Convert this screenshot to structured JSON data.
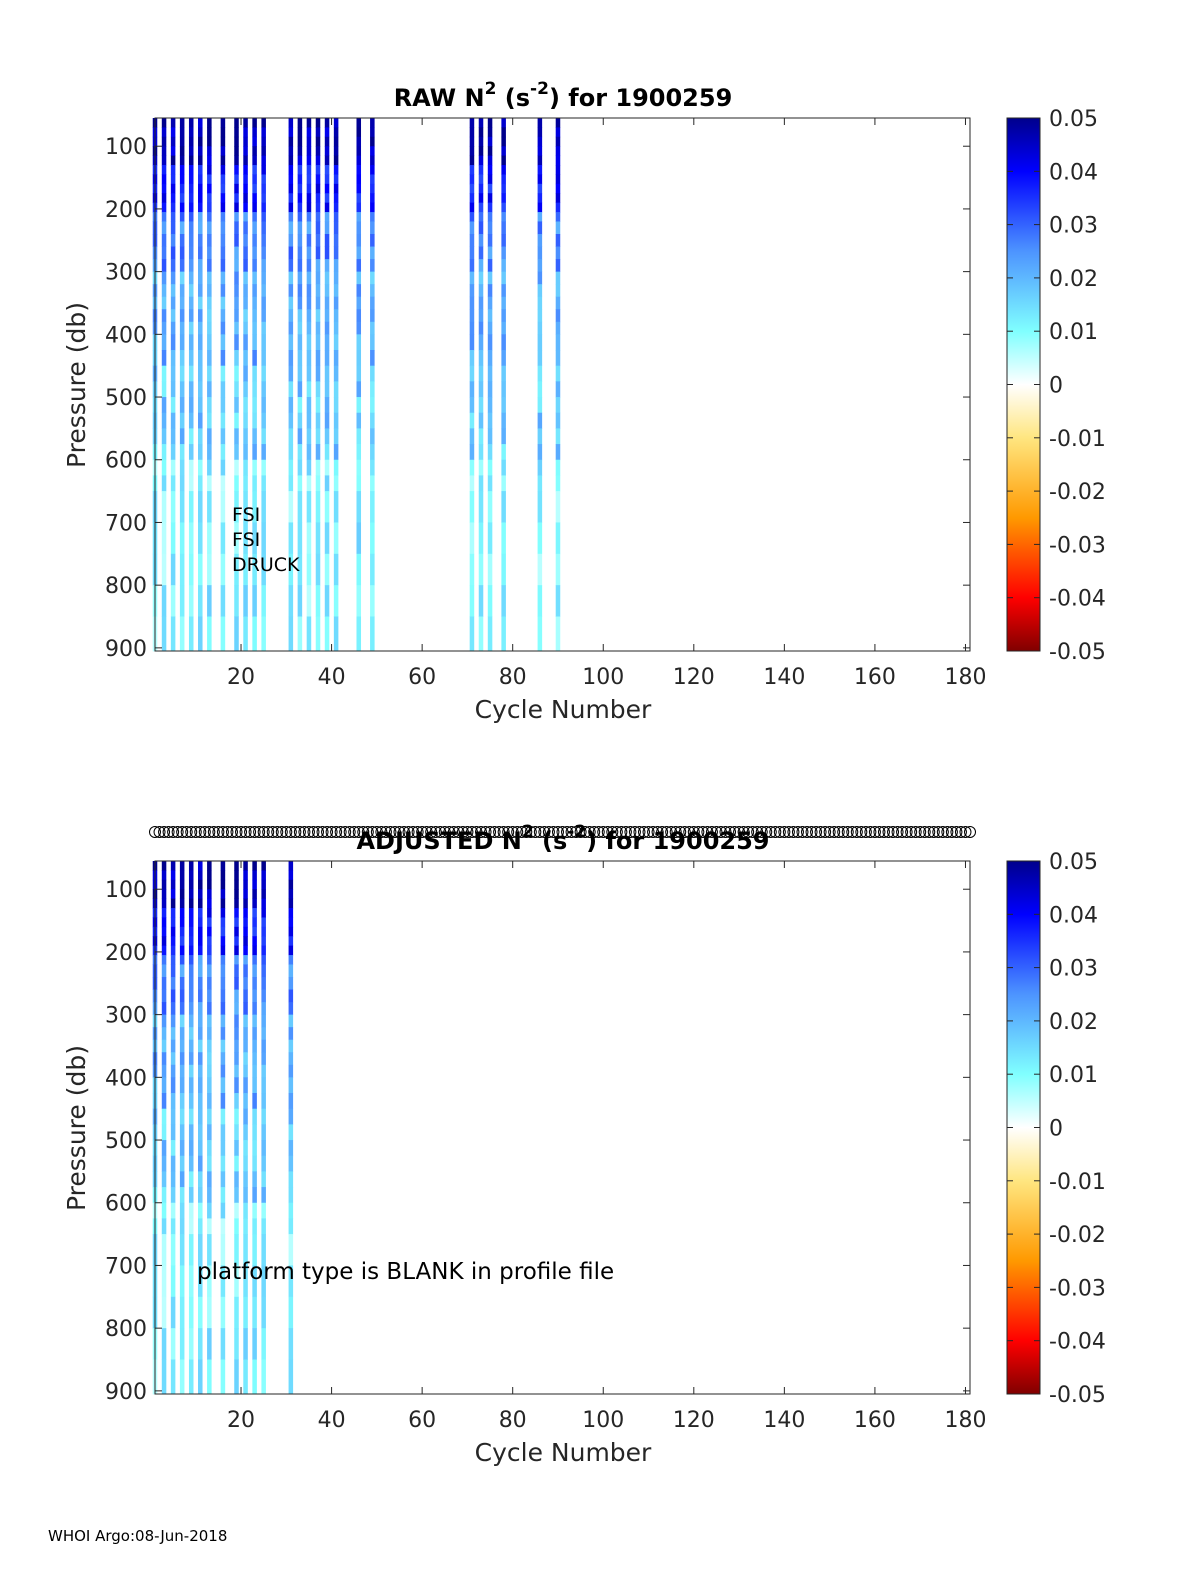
{
  "footer": "WHOI Argo:08-Jun-2018",
  "chart_data": [
    {
      "type": "heatmap",
      "title_main": "RAW N",
      "title_sup1": "2",
      "title_mid": " (s",
      "title_sup2": "-2",
      "title_end": ") for 1900259",
      "xlabel": "Cycle Number",
      "ylabel": "Pressure (db)",
      "xlim": [
        1,
        181
      ],
      "ylim": [
        55,
        905
      ],
      "xticks": [
        20,
        40,
        60,
        80,
        100,
        120,
        140,
        160,
        180
      ],
      "yticks": [
        100,
        200,
        300,
        400,
        500,
        600,
        700,
        800,
        900
      ],
      "colorbar": {
        "min": -0.05,
        "max": 0.05,
        "ticks": [
          "0.05",
          "0.04",
          "0.03",
          "0.02",
          "0.01",
          "0",
          "-0.01",
          "-0.02",
          "-0.03",
          "-0.04",
          "-0.05"
        ]
      },
      "annotations": [
        "FSI",
        "FSI",
        "DRUCK"
      ],
      "cycles": [
        1,
        3,
        5,
        7,
        9,
        11,
        13,
        16,
        19,
        21,
        23,
        25,
        31,
        33,
        35,
        37,
        39,
        41,
        46,
        49,
        71,
        73,
        75,
        78,
        86,
        90
      ],
      "pressure_levels": [
        55,
        70,
        85,
        100,
        115,
        130,
        145,
        160,
        175,
        190,
        205,
        220,
        240,
        260,
        280,
        300,
        320,
        340,
        360,
        380,
        400,
        425,
        450,
        475,
        500,
        525,
        550,
        575,
        600,
        625,
        650,
        700,
        750,
        800,
        850,
        905
      ]
    },
    {
      "type": "heatmap",
      "title_main": "ADJUSTED N",
      "title_sup1": "2",
      "title_mid": " (s",
      "title_sup2": "-2",
      "title_end": ") for 1900259",
      "xlabel": "Cycle Number",
      "ylabel": "Pressure (db)",
      "xlim": [
        1,
        181
      ],
      "ylim": [
        55,
        905
      ],
      "xticks": [
        20,
        40,
        60,
        80,
        100,
        120,
        140,
        160,
        180
      ],
      "yticks": [
        100,
        200,
        300,
        400,
        500,
        600,
        700,
        800,
        900
      ],
      "colorbar": {
        "min": -0.05,
        "max": 0.05,
        "ticks": [
          "0.05",
          "0.04",
          "0.03",
          "0.02",
          "0.01",
          "0",
          "-0.01",
          "-0.02",
          "-0.03",
          "-0.04",
          "-0.05"
        ]
      },
      "annotations": [
        "platform type is BLANK in profile file"
      ],
      "marker_row": {
        "symbol": "o",
        "x_start": 1,
        "x_end": 181,
        "step": 1
      },
      "cycles": [
        1,
        3,
        5,
        7,
        9,
        11,
        13,
        16,
        19,
        21,
        23,
        25,
        31
      ],
      "pressure_levels": [
        55,
        70,
        85,
        100,
        115,
        130,
        145,
        160,
        175,
        190,
        205,
        220,
        240,
        260,
        280,
        300,
        320,
        340,
        360,
        380,
        400,
        425,
        450,
        475,
        500,
        525,
        550,
        575,
        600,
        625,
        650,
        700,
        750,
        800,
        850,
        905
      ]
    }
  ]
}
